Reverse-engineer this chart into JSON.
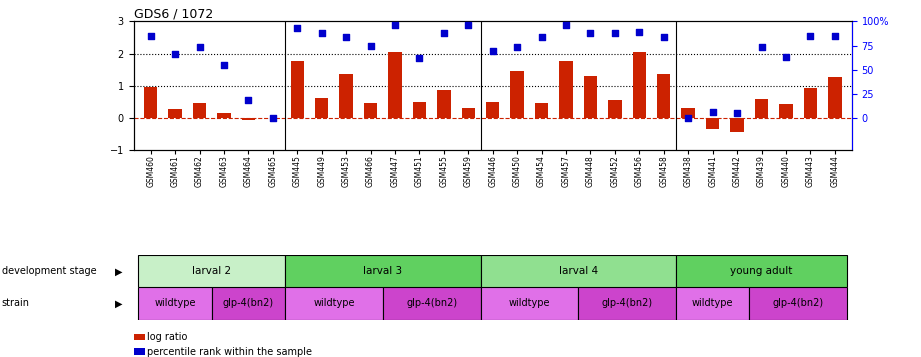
{
  "title": "GDS6 / 1072",
  "samples": [
    "GSM460",
    "GSM461",
    "GSM462",
    "GSM463",
    "GSM464",
    "GSM465",
    "GSM445",
    "GSM449",
    "GSM453",
    "GSM466",
    "GSM447",
    "GSM451",
    "GSM455",
    "GSM459",
    "GSM446",
    "GSM450",
    "GSM454",
    "GSM457",
    "GSM448",
    "GSM452",
    "GSM456",
    "GSM458",
    "GSM438",
    "GSM441",
    "GSM442",
    "GSM439",
    "GSM440",
    "GSM443",
    "GSM444"
  ],
  "log_ratio": [
    0.95,
    0.28,
    0.45,
    0.15,
    -0.08,
    0.0,
    1.78,
    0.62,
    1.35,
    0.45,
    2.05,
    0.5,
    0.85,
    0.3,
    0.5,
    1.45,
    0.45,
    1.78,
    1.3,
    0.55,
    2.05,
    1.35,
    0.3,
    -0.35,
    -0.45,
    0.6,
    0.42,
    0.92,
    1.28
  ],
  "percentile_left": [
    2.55,
    1.98,
    2.2,
    1.65,
    0.55,
    0.0,
    2.78,
    2.65,
    2.5,
    2.25,
    2.88,
    1.85,
    2.65,
    2.88,
    2.08,
    2.2,
    2.5,
    2.88,
    2.65,
    2.65,
    2.66,
    2.5,
    0.0,
    0.18,
    0.15,
    2.2,
    1.9,
    2.55,
    2.55
  ],
  "dev_stages": [
    {
      "label": "larval 2",
      "start": 0,
      "end": 6,
      "color": "#c8f0c8"
    },
    {
      "label": "larval 3",
      "start": 6,
      "end": 14,
      "color": "#60d060"
    },
    {
      "label": "larval 4",
      "start": 14,
      "end": 22,
      "color": "#90e090"
    },
    {
      "label": "young adult",
      "start": 22,
      "end": 29,
      "color": "#60d060"
    }
  ],
  "strains": [
    {
      "label": "wildtype",
      "start": 0,
      "end": 3,
      "color": "#e070e8"
    },
    {
      "label": "glp-4(bn2)",
      "start": 3,
      "end": 6,
      "color": "#cc44cc"
    },
    {
      "label": "wildtype",
      "start": 6,
      "end": 10,
      "color": "#e070e8"
    },
    {
      "label": "glp-4(bn2)",
      "start": 10,
      "end": 14,
      "color": "#cc44cc"
    },
    {
      "label": "wildtype",
      "start": 14,
      "end": 18,
      "color": "#e070e8"
    },
    {
      "label": "glp-4(bn2)",
      "start": 18,
      "end": 22,
      "color": "#cc44cc"
    },
    {
      "label": "wildtype",
      "start": 22,
      "end": 25,
      "color": "#e070e8"
    },
    {
      "label": "glp-4(bn2)",
      "start": 25,
      "end": 29,
      "color": "#cc44cc"
    }
  ],
  "group_dividers": [
    6,
    14,
    22
  ],
  "ylim_left": [
    -1,
    3
  ],
  "right_yticks": [
    0,
    25,
    50,
    75,
    100
  ],
  "right_ytick_labels": [
    "0",
    "25",
    "50",
    "75",
    "100%"
  ],
  "left_yticks": [
    -1,
    0,
    1,
    2,
    3
  ],
  "bar_color": "#cc2200",
  "dot_color": "#0000cc",
  "hline_zero_color": "#cc2200",
  "hline_zero_style": "--",
  "hline_dotted_values": [
    1.0,
    2.0
  ],
  "hline_dotted_color": "#000000",
  "background_color": "#ffffff",
  "bar_width": 0.55
}
